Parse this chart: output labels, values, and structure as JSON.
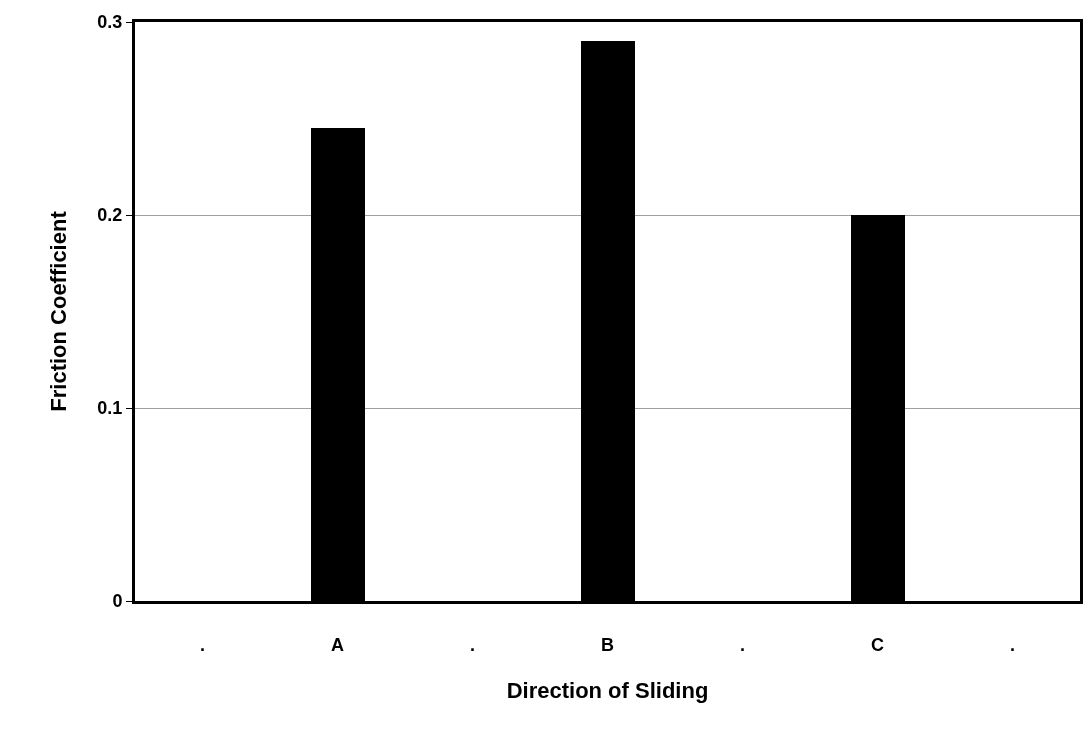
{
  "chart_data": {
    "type": "bar",
    "xlabel": "Direction of Sliding",
    "ylabel": "Friction Coefficient",
    "categories": [
      ".",
      "A",
      ".",
      "B",
      ".",
      "C",
      "."
    ],
    "values": [
      null,
      0.245,
      null,
      0.29,
      null,
      0.2,
      null
    ],
    "color": "#000000",
    "ylim": [
      0,
      0.3
    ],
    "yticks": [
      0,
      0.1,
      0.2,
      0.3
    ],
    "grid": "y",
    "legend": false
  }
}
